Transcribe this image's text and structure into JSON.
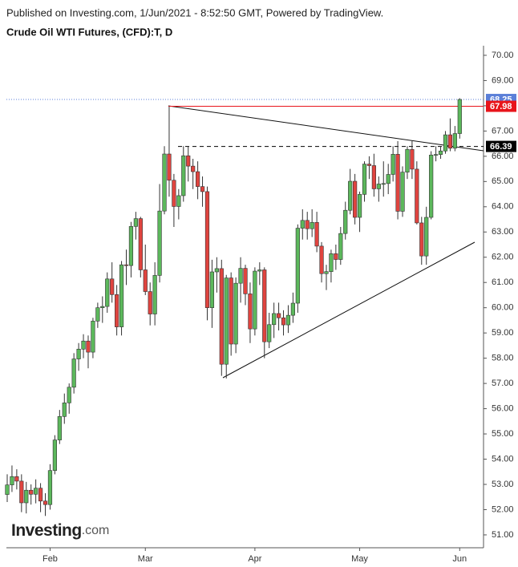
{
  "publish_note": "Published on Investing.com, 1/Jun/2021 - 8:52:50 GMT, Powered by TradingView.",
  "logo": {
    "name": "Investing",
    "domain": ".com"
  },
  "chart_data": {
    "type": "candlestick",
    "title": "Crude Oil WTI Futures, (CFD):T, D",
    "categories": [
      null,
      null,
      null,
      null,
      null,
      null,
      null,
      null,
      null,
      "Feb",
      null,
      null,
      null,
      null,
      null,
      null,
      null,
      null,
      null,
      null,
      null,
      null,
      null,
      null,
      null,
      null,
      null,
      null,
      null,
      "Mar",
      null,
      null,
      null,
      null,
      null,
      null,
      null,
      null,
      null,
      null,
      null,
      null,
      null,
      null,
      null,
      null,
      null,
      null,
      null,
      null,
      null,
      null,
      "Apr",
      null,
      null,
      null,
      null,
      null,
      null,
      null,
      null,
      null,
      null,
      null,
      null,
      null,
      null,
      null,
      null,
      null,
      null,
      null,
      null,
      null,
      "May",
      null,
      null,
      null,
      null,
      null,
      null,
      null,
      null,
      null,
      null,
      null,
      null,
      null,
      null,
      null,
      null,
      null,
      null,
      null,
      null,
      "Jun"
    ],
    "open": [
      52.6,
      52.98,
      53.31,
      53.13,
      52.27,
      52.77,
      52.61,
      52.85,
      52.34,
      52.2,
      53.55,
      54.76,
      55.69,
      56.23,
      56.85,
      57.97,
      58.36,
      58.68,
      58.24,
      59.47,
      60.0,
      60.05,
      61.14,
      60.52,
      59.24,
      61.7,
      61.67,
      63.22,
      63.53,
      61.5,
      60.64,
      59.75,
      61.28,
      63.83,
      66.09,
      65.05,
      64.01,
      64.44,
      66.02,
      65.61,
      65.39,
      64.8,
      64.6,
      60.0,
      61.42,
      61.55,
      57.76,
      61.18,
      58.56,
      60.97,
      61.56,
      60.55,
      59.16,
      61.45,
      61.5,
      58.65,
      59.33,
      59.77,
      59.6,
      59.32,
      59.7,
      60.18,
      63.15,
      63.46,
      63.13,
      63.38,
      62.44,
      61.35,
      61.43,
      62.14,
      61.91,
      62.94,
      63.86,
      65.01,
      63.58,
      64.49,
      65.69,
      65.63,
      64.71,
      64.9,
      64.92,
      65.28,
      66.08,
      63.82,
      65.37,
      66.27,
      65.49,
      63.36,
      62.05,
      63.58,
      66.05,
      66.07,
      66.21,
      66.85,
      66.32,
      66.9
    ],
    "high": [
      53.4,
      53.75,
      53.6,
      53.4,
      53.1,
      53.0,
      53.2,
      53.05,
      52.65,
      53.8,
      54.95,
      55.95,
      56.6,
      57.0,
      58.2,
      58.6,
      58.95,
      58.9,
      59.6,
      60.2,
      60.45,
      61.4,
      61.8,
      60.9,
      61.85,
      62.3,
      63.4,
      63.8,
      63.6,
      62.5,
      61.0,
      61.8,
      64.9,
      66.4,
      67.98,
      65.3,
      64.7,
      66.4,
      66.4,
      65.9,
      65.8,
      65.2,
      64.8,
      61.9,
      62.0,
      61.9,
      61.3,
      61.4,
      61.2,
      62.0,
      61.7,
      61.0,
      61.6,
      61.8,
      61.6,
      59.8,
      60.2,
      60.2,
      59.9,
      60.1,
      60.6,
      63.3,
      63.9,
      63.8,
      63.9,
      63.8,
      62.6,
      61.7,
      62.3,
      62.5,
      63.2,
      64.2,
      65.5,
      65.3,
      64.6,
      65.8,
      66.0,
      66.1,
      65.2,
      65.8,
      65.7,
      66.4,
      66.6,
      65.6,
      66.4,
      66.6,
      65.8,
      63.6,
      64.0,
      66.2,
      66.4,
      66.4,
      67.0,
      67.5,
      67.2,
      68.3
    ],
    "low": [
      52.3,
      52.7,
      52.8,
      51.9,
      51.85,
      52.2,
      52.25,
      51.9,
      51.75,
      52.0,
      53.4,
      54.6,
      55.4,
      55.8,
      56.6,
      57.5,
      58.0,
      57.6,
      58.0,
      59.2,
      59.4,
      59.8,
      60.2,
      58.9,
      58.9,
      60.9,
      61.2,
      62.7,
      61.2,
      60.5,
      59.3,
      59.3,
      61.0,
      63.7,
      64.4,
      63.2,
      63.5,
      64.2,
      65.0,
      64.7,
      64.3,
      64.0,
      59.5,
      59.2,
      60.6,
      57.3,
      57.2,
      58.1,
      58.2,
      60.2,
      60.1,
      58.6,
      58.9,
      60.9,
      58.0,
      58.4,
      58.8,
      59.1,
      58.9,
      59.0,
      59.4,
      59.8,
      62.7,
      62.7,
      62.8,
      62.2,
      61.0,
      60.7,
      61.0,
      61.5,
      61.7,
      62.7,
      63.7,
      63.3,
      63.0,
      64.2,
      65.1,
      64.4,
      64.2,
      64.4,
      64.5,
      65.0,
      63.5,
      63.6,
      65.1,
      65.1,
      63.3,
      61.7,
      61.7,
      63.5,
      65.8,
      65.9,
      66.1,
      66.2,
      66.2,
      66.7
    ],
    "close": [
      52.98,
      53.31,
      53.13,
      52.27,
      52.77,
      52.61,
      52.85,
      52.34,
      52.2,
      53.55,
      54.76,
      55.69,
      56.23,
      56.85,
      57.97,
      58.36,
      58.68,
      58.24,
      59.47,
      60.0,
      60.05,
      61.14,
      60.52,
      59.24,
      61.7,
      61.67,
      63.22,
      63.53,
      61.5,
      60.64,
      59.75,
      61.28,
      63.83,
      66.09,
      65.05,
      64.01,
      64.44,
      66.02,
      65.61,
      65.39,
      64.8,
      64.6,
      60.0,
      61.42,
      61.55,
      57.76,
      61.18,
      58.56,
      60.97,
      61.56,
      60.55,
      59.16,
      61.45,
      61.5,
      58.65,
      59.33,
      59.77,
      59.6,
      59.32,
      59.7,
      60.18,
      63.15,
      63.46,
      63.13,
      63.38,
      62.44,
      61.35,
      61.43,
      62.14,
      61.91,
      62.94,
      63.86,
      65.01,
      63.58,
      64.49,
      65.69,
      65.63,
      64.71,
      64.9,
      64.92,
      65.28,
      66.08,
      63.82,
      65.37,
      66.27,
      65.49,
      63.36,
      62.05,
      63.58,
      66.05,
      66.07,
      66.21,
      66.85,
      66.32,
      66.9,
      68.25
    ],
    "up_color": "#5cb85c",
    "down_color": "#e0443f",
    "ylim": [
      50.49,
      70.38
    ],
    "yticks": [
      {
        "value": 51,
        "label": "51.00"
      },
      {
        "value": 52,
        "label": "52.00"
      },
      {
        "value": 53,
        "label": "53.00"
      },
      {
        "value": 54,
        "label": "54.00"
      },
      {
        "value": 55,
        "label": "55.00"
      },
      {
        "value": 56,
        "label": "56.00"
      },
      {
        "value": 57,
        "label": "57.00"
      },
      {
        "value": 58,
        "label": "58.00"
      },
      {
        "value": 59,
        "label": "59.00"
      },
      {
        "value": 60,
        "label": "60.00"
      },
      {
        "value": 61,
        "label": "61.00"
      },
      {
        "value": 62,
        "label": "62.00"
      },
      {
        "value": 63,
        "label": "63.00"
      },
      {
        "value": 64,
        "label": "64.00"
      },
      {
        "value": 65,
        "label": "65.00"
      },
      {
        "value": 66,
        "label": "66.00"
      },
      {
        "value": 67,
        "label": "67.00"
      },
      {
        "value": 68,
        "label": "68.00"
      },
      {
        "value": 69,
        "label": "69.00"
      },
      {
        "value": 70,
        "label": "70.00"
      }
    ],
    "levels": [
      {
        "value": 68.25,
        "color": "#5b7fd8",
        "style": "dotted"
      },
      {
        "value": 67.98,
        "color": "#e8141b",
        "style": "solid"
      },
      {
        "value": 66.39,
        "color": "#000000",
        "style": "dashed"
      }
    ],
    "grid": false
  }
}
